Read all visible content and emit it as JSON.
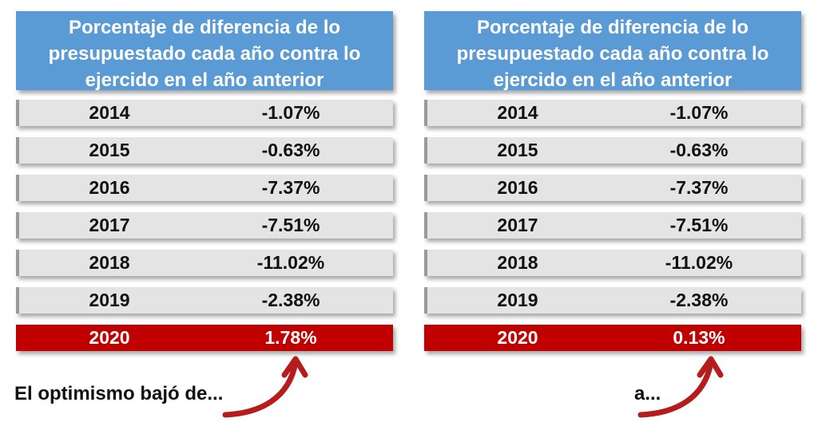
{
  "chart_data": [
    {
      "type": "table",
      "title": "Porcentaje de diferencia de lo presupuestado cada año contra lo ejercido en el año anterior",
      "categories": [
        "2014",
        "2015",
        "2016",
        "2017",
        "2018",
        "2019",
        "2020"
      ],
      "values": [
        "-1.07%",
        "-0.63%",
        "-7.37%",
        "-7.51%",
        "-11.02%",
        "-2.38%",
        "1.78%"
      ],
      "highlight_index": 6,
      "caption": "El optimismo bajó de..."
    },
    {
      "type": "table",
      "title": "Porcentaje de diferencia de lo presupuestado cada año contra lo ejercido en el año anterior",
      "categories": [
        "2014",
        "2015",
        "2016",
        "2017",
        "2018",
        "2019",
        "2020"
      ],
      "values": [
        "-1.07%",
        "-0.63%",
        "-7.37%",
        "-7.51%",
        "-11.02%",
        "-2.38%",
        "0.13%"
      ],
      "highlight_index": 6,
      "caption": "a..."
    }
  ],
  "colors": {
    "header_bg": "#5b9bd5",
    "row_bg": "#e4e4e4",
    "highlight_bg": "#c00000",
    "arrow": "#b71c1c"
  },
  "icons": [
    "curved-arrow-icon"
  ]
}
